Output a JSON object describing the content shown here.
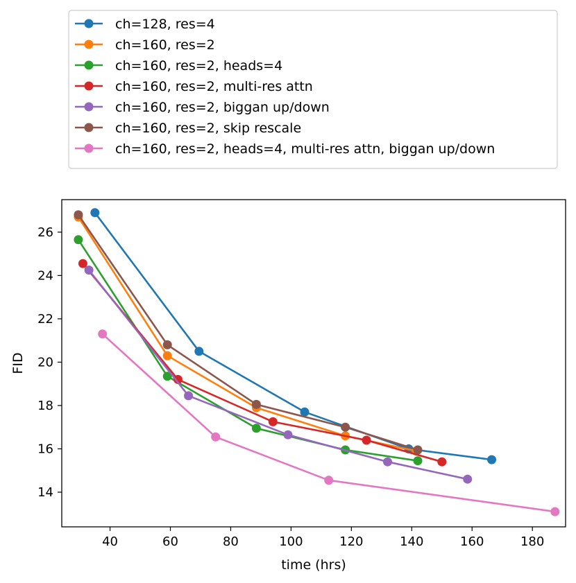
{
  "chart_data": {
    "type": "line",
    "title": "",
    "xlabel": "time (hrs)",
    "ylabel": "FID",
    "xlim": [
      24,
      191
    ],
    "ylim": [
      12.4,
      27.5
    ],
    "xticks": [
      40,
      60,
      80,
      100,
      120,
      140,
      160,
      180
    ],
    "yticks": [
      14,
      16,
      18,
      20,
      22,
      24,
      26
    ],
    "grid": false,
    "legend_position": "above plot",
    "series": [
      {
        "name": "ch=128, res=4",
        "color": "#1f77b4",
        "x": [
          35,
          69.5,
          104.5,
          139,
          166.5
        ],
        "y": [
          26.9,
          20.5,
          17.7,
          16.0,
          15.5
        ]
      },
      {
        "name": "ch=160, res=2",
        "color": "#ff7f0e",
        "x": [
          29.5,
          59,
          88.5,
          118,
          141.5
        ],
        "y": [
          26.7,
          20.3,
          17.9,
          16.6,
          15.9
        ]
      },
      {
        "name": "ch=160, res=2, heads=4",
        "color": "#2ca02c",
        "x": [
          29.5,
          59,
          88.5,
          118,
          142
        ],
        "y": [
          25.65,
          19.35,
          16.95,
          15.95,
          15.45
        ]
      },
      {
        "name": "ch=160, res=2, multi-res attn",
        "color": "#d62728",
        "x": [
          31,
          62.5,
          94,
          125,
          150
        ],
        "y": [
          24.55,
          19.2,
          17.25,
          16.4,
          15.4
        ]
      },
      {
        "name": "ch=160, res=2, biggan up/down",
        "color": "#9467bd",
        "x": [
          33,
          66,
          99,
          132,
          158.5
        ],
        "y": [
          24.25,
          18.45,
          16.65,
          15.4,
          14.6
        ]
      },
      {
        "name": "ch=160, res=2, skip rescale",
        "color": "#8c564b",
        "x": [
          29.5,
          59,
          88.5,
          118,
          142
        ],
        "y": [
          26.8,
          20.8,
          18.05,
          17.0,
          15.95
        ]
      },
      {
        "name": "ch=160, res=2, heads=4, multi-res attn, biggan up/down",
        "color": "#e377c2",
        "x": [
          37.5,
          75,
          112.5,
          187.5
        ],
        "y": [
          21.3,
          16.55,
          14.55,
          13.1
        ]
      }
    ]
  }
}
